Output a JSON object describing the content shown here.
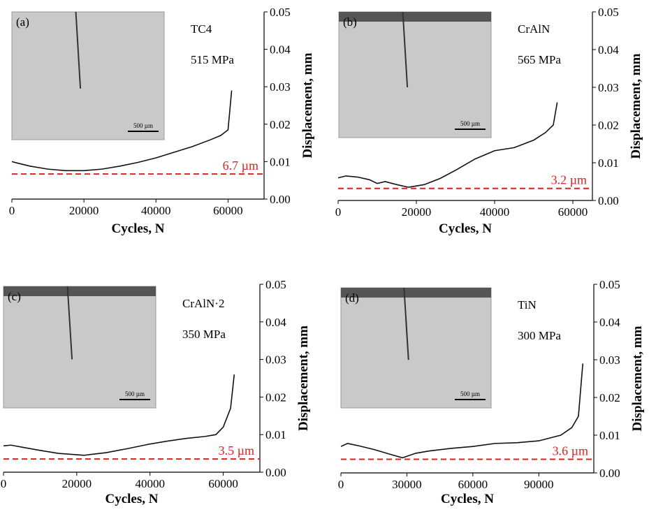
{
  "chart_data": [
    {
      "type": "line",
      "panel_label": "(a)",
      "material": "TC4",
      "stress": "515 MPa",
      "scale_bar": "500 µm",
      "x_label": "Cycles, N",
      "y_label": "Displacement, mm",
      "xlim": [
        0,
        70000
      ],
      "xticks": [
        0,
        20000,
        40000,
        60000
      ],
      "ylim": [
        0,
        0.05
      ],
      "yticks": [
        {
          "value": 0,
          "label": "0.00"
        },
        {
          "value": 0.01,
          "label": "0.01"
        },
        {
          "value": 0.02,
          "label": "0.02"
        },
        {
          "value": 0.03,
          "label": "0.03"
        },
        {
          "value": 0.04,
          "label": "0.04"
        },
        {
          "value": 0.05,
          "label": "0.05"
        }
      ],
      "color": "#111111",
      "reference": {
        "value": 0.0067,
        "label": "6.7 µm",
        "color": "#e02020"
      },
      "x": [
        0,
        2000,
        5000,
        10000,
        15000,
        20000,
        25000,
        30000,
        35000,
        40000,
        45000,
        50000,
        55000,
        58000,
        60000,
        61000
      ],
      "values": [
        0.01,
        0.0095,
        0.0088,
        0.008,
        0.0076,
        0.0076,
        0.008,
        0.0088,
        0.0098,
        0.011,
        0.0125,
        0.014,
        0.0158,
        0.017,
        0.0185,
        0.029
      ]
    },
    {
      "type": "line",
      "panel_label": "(b)",
      "material": "CrAlN",
      "stress": "565 MPa",
      "scale_bar": "500 µm",
      "x_label": "Cycles, N",
      "y_label": "Displacement, mm",
      "xlim": [
        0,
        65000
      ],
      "xticks": [
        0,
        20000,
        40000,
        60000
      ],
      "ylim": [
        0,
        0.05
      ],
      "yticks": [
        {
          "value": 0,
          "label": "0.00"
        },
        {
          "value": 0.01,
          "label": "0.01"
        },
        {
          "value": 0.02,
          "label": "0.02"
        },
        {
          "value": 0.03,
          "label": "0.03"
        },
        {
          "value": 0.04,
          "label": "0.04"
        },
        {
          "value": 0.05,
          "label": "0.05"
        }
      ],
      "color": "#111111",
      "reference": {
        "value": 0.0032,
        "label": "3.2 µm",
        "color": "#e02020"
      },
      "x": [
        0,
        2000,
        5000,
        8000,
        10000,
        12000,
        15000,
        18000,
        22000,
        26000,
        30000,
        35000,
        40000,
        45000,
        50000,
        53000,
        55000,
        56000
      ],
      "values": [
        0.006,
        0.0065,
        0.0062,
        0.0055,
        0.0045,
        0.005,
        0.0042,
        0.0035,
        0.0042,
        0.0058,
        0.008,
        0.011,
        0.0132,
        0.014,
        0.016,
        0.018,
        0.02,
        0.026
      ]
    },
    {
      "type": "line",
      "panel_label": "(c)",
      "material": "CrAlN·2",
      "stress": "350 MPa",
      "scale_bar": "500 µm",
      "x_label": "Cycles, N",
      "y_label": "Displacement, mm",
      "xlim": [
        0,
        70000
      ],
      "xticks": [
        0,
        20000,
        40000,
        60000
      ],
      "ylim": [
        0,
        0.05
      ],
      "yticks": [
        {
          "value": 0,
          "label": "0.00"
        },
        {
          "value": 0.01,
          "label": "0.01"
        },
        {
          "value": 0.02,
          "label": "0.02"
        },
        {
          "value": 0.03,
          "label": "0.03"
        },
        {
          "value": 0.04,
          "label": "0.04"
        },
        {
          "value": 0.05,
          "label": "0.05"
        }
      ],
      "color": "#111111",
      "reference": {
        "value": 0.0035,
        "label": "3.5 µm",
        "color": "#e02020"
      },
      "x": [
        0,
        2000,
        6000,
        10000,
        15000,
        22000,
        28000,
        34000,
        40000,
        45000,
        50000,
        55000,
        58000,
        60000,
        62000,
        63000
      ],
      "values": [
        0.007,
        0.0072,
        0.0065,
        0.0058,
        0.005,
        0.0045,
        0.0052,
        0.0063,
        0.0075,
        0.0083,
        0.009,
        0.0095,
        0.01,
        0.012,
        0.017,
        0.026
      ]
    },
    {
      "type": "line",
      "panel_label": "(d)",
      "material": "TiN",
      "stress": "300 MPa",
      "scale_bar": "500 µm",
      "x_label": "Cycles, N",
      "y_label": "Displacement, mm",
      "xlim": [
        0,
        115000
      ],
      "xticks": [
        0,
        30000,
        60000,
        90000
      ],
      "ylim": [
        0,
        0.05
      ],
      "yticks": [
        {
          "value": 0,
          "label": "0.00"
        },
        {
          "value": 0.01,
          "label": "0.01"
        },
        {
          "value": 0.02,
          "label": "0.02"
        },
        {
          "value": 0.03,
          "label": "0.03"
        },
        {
          "value": 0.04,
          "label": "0.04"
        },
        {
          "value": 0.05,
          "label": "0.05"
        }
      ],
      "color": "#111111",
      "reference": {
        "value": 0.0036,
        "label": "3.6 µm",
        "color": "#e02020"
      },
      "x": [
        0,
        3000,
        8000,
        15000,
        22000,
        28000,
        34000,
        40000,
        50000,
        60000,
        70000,
        80000,
        90000,
        100000,
        105000,
        108000,
        110000
      ],
      "values": [
        0.007,
        0.0078,
        0.0072,
        0.0062,
        0.005,
        0.004,
        0.0052,
        0.0058,
        0.0065,
        0.007,
        0.0078,
        0.008,
        0.0085,
        0.01,
        0.012,
        0.015,
        0.029
      ]
    }
  ]
}
